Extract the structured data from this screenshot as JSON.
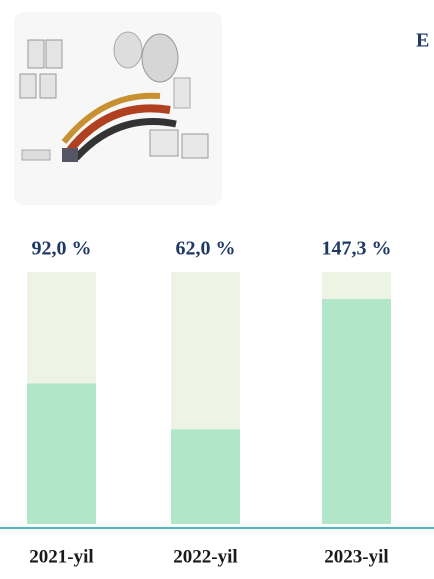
{
  "chart_data": {
    "type": "bar",
    "title": "E",
    "categories": [
      "2021-yil",
      "2022-yil",
      "2023-yil"
    ],
    "values": [
      92.0,
      62.0,
      147.3
    ],
    "value_labels": [
      "92,0 %",
      "62,0 %",
      "147,3 %"
    ],
    "color": "#b2e6c8",
    "track_color": "#eef4e4",
    "ylim": [
      0,
      165
    ]
  }
}
